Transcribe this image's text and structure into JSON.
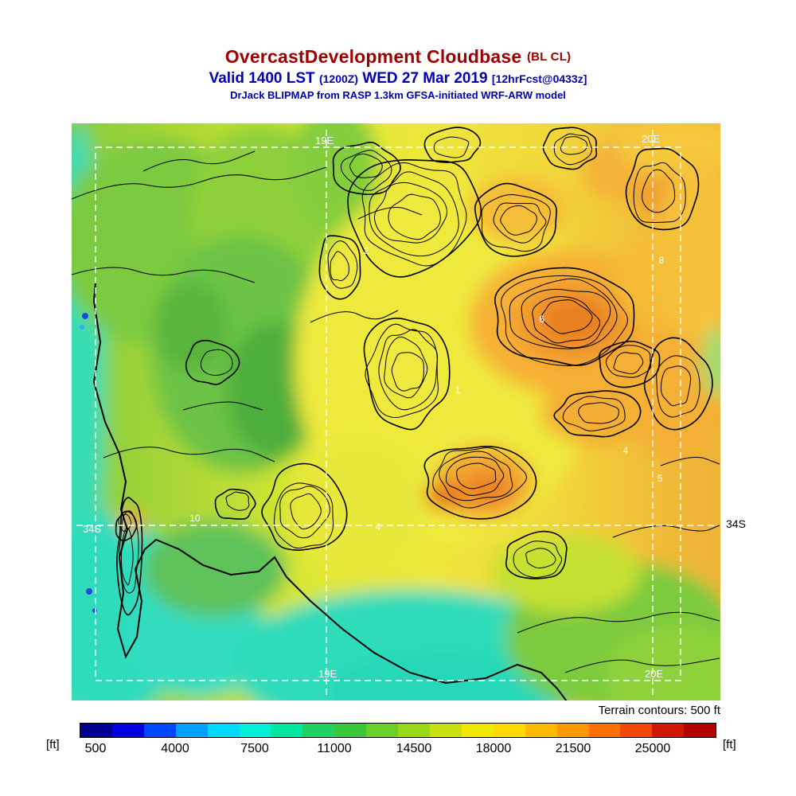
{
  "header": {
    "title": "OvercastDevelopment Cloudbase",
    "title_suffix": "(BL CL)",
    "valid": {
      "main": "Valid 1400 LST",
      "zulu": "(1200Z)",
      "date": "WED 27 Mar 2019",
      "fcst": "[12hrFcst@0433z]"
    },
    "model": "DrJack BLIPMAP from RASP 1.3km GFSA-initiated WRF-ARW model"
  },
  "map": {
    "graticule": {
      "lon_top_left": "19E",
      "lon_top_right": "20E",
      "lon_bottom_left": "19E",
      "lon_bottom_right": "20E",
      "lat_left": "34S",
      "lat_right": "34S"
    },
    "spot_values": [
      {
        "label": "2",
        "x": 45.4,
        "y": 22.1
      },
      {
        "label": "8",
        "x": 90.9,
        "y": 23.7
      },
      {
        "label": "6",
        "x": 72.5,
        "y": 33.9
      },
      {
        "label": "1",
        "x": 59.5,
        "y": 46.2
      },
      {
        "label": "4",
        "x": 85.4,
        "y": 56.7
      },
      {
        "label": "5",
        "x": 90.7,
        "y": 61.5
      },
      {
        "label": "10",
        "x": 19.0,
        "y": 68.4
      },
      {
        "label": "4",
        "x": 47.2,
        "y": 69.9
      }
    ],
    "terrain_note": "Terrain contours: 500 ft"
  },
  "colorbar": {
    "unit": "[ft]",
    "ticks": [
      "500",
      "4000",
      "7500",
      "11000",
      "14500",
      "18000",
      "21500",
      "25000"
    ],
    "colors": [
      "#000090",
      "#0000e0",
      "#0048ff",
      "#00a0ff",
      "#00d8ff",
      "#00f0d8",
      "#00e8a0",
      "#20d060",
      "#38c838",
      "#68d028",
      "#98d818",
      "#c8e010",
      "#f0e800",
      "#ffd800",
      "#ffb800",
      "#ff9800",
      "#ff7000",
      "#f04800",
      "#d01800",
      "#b00000"
    ]
  },
  "chart_data": {
    "type": "heatmap",
    "title": "OvercastDevelopment Cloudbase (BL CL)",
    "units": "ft",
    "colorbar_ticks": [
      500,
      4000,
      7500,
      11000,
      14500,
      18000,
      21500,
      25000
    ],
    "terrain_contour_interval": "500 ft"
  }
}
